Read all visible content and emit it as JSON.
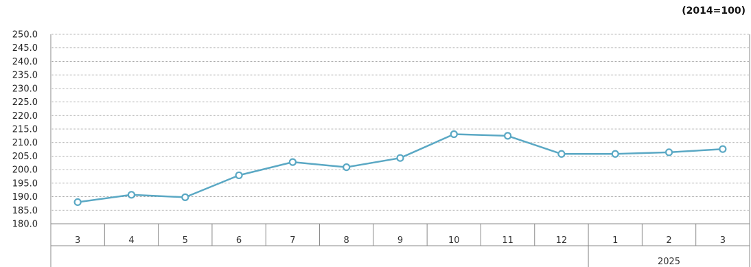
{
  "unit_label": "(2014=100)",
  "chart_data": {
    "type": "line",
    "title": "",
    "xlabel": "",
    "ylabel": "",
    "categories": [
      "3",
      "4",
      "5",
      "6",
      "7",
      "8",
      "9",
      "10",
      "11",
      "12",
      "1",
      "2",
      "3"
    ],
    "year_groups": [
      {
        "label": "",
        "count": 10
      },
      {
        "label": "2025",
        "count": 3
      }
    ],
    "series": [
      {
        "values": [
          188.0,
          190.7,
          189.8,
          197.9,
          202.8,
          200.9,
          204.3,
          213.1,
          212.5,
          205.8,
          205.8,
          206.4,
          207.6
        ]
      }
    ],
    "ylim": [
      180.0,
      250.0
    ],
    "ystep": 5.0,
    "grid": true,
    "colors": {
      "line": "#5aa8c4",
      "marker_fill": "#ffffff"
    }
  }
}
